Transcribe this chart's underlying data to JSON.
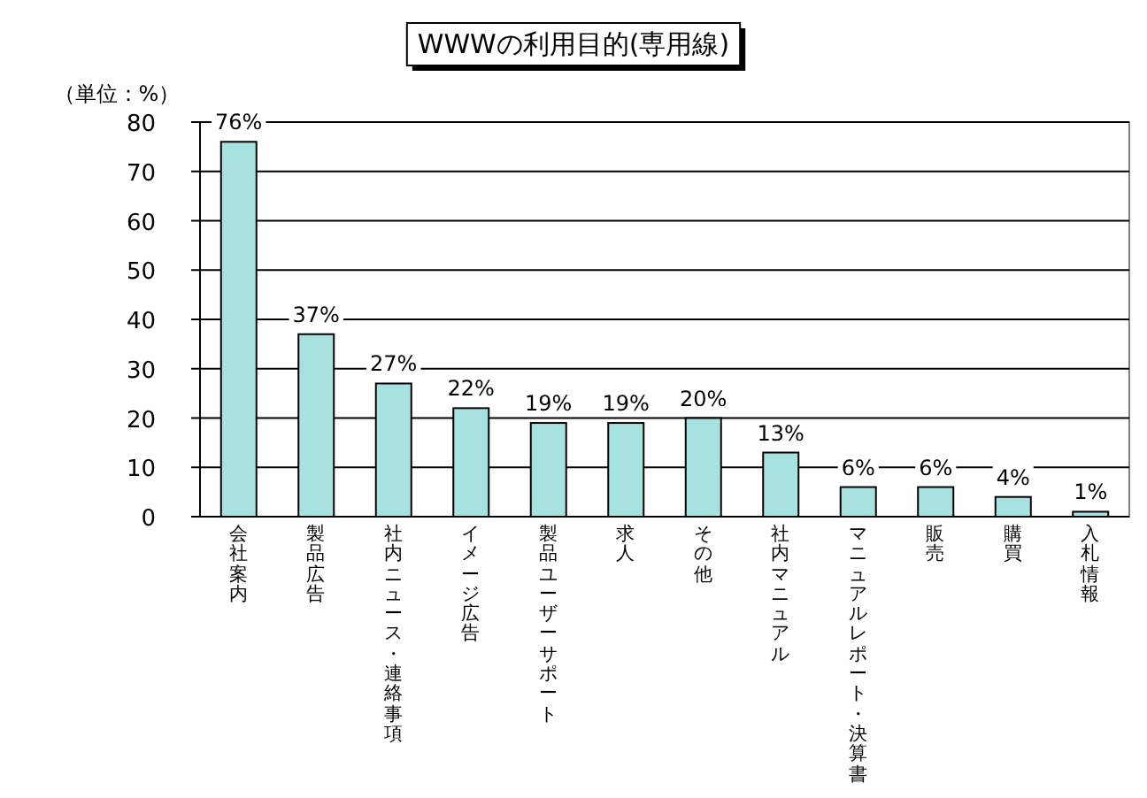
{
  "chart_data": {
    "type": "bar",
    "title": "WWWの利用目的(専用線)",
    "ylabel": "（単位：%）",
    "categories": [
      "会社案内",
      "製品広告",
      "社内ニュース・連絡事項",
      "イメージ広告",
      "製品ユーザーサポート",
      "求人",
      "その他",
      "社内マニュアル",
      "マニュアルレポート・決算書",
      "販売",
      "購買",
      "入札情報"
    ],
    "values": [
      76,
      37,
      27,
      22,
      19,
      19,
      20,
      13,
      6,
      6,
      4,
      1
    ],
    "value_labels": [
      "76%",
      "37%",
      "27%",
      "22%",
      "19%",
      "19%",
      "20%",
      "13%",
      "6%",
      "6%",
      "4%",
      "1%"
    ],
    "color": "#a8e2e0",
    "ylim": [
      0,
      80
    ],
    "yticks": [
      0,
      10,
      20,
      30,
      40,
      50,
      60,
      70,
      80
    ],
    "grid": "y"
  }
}
